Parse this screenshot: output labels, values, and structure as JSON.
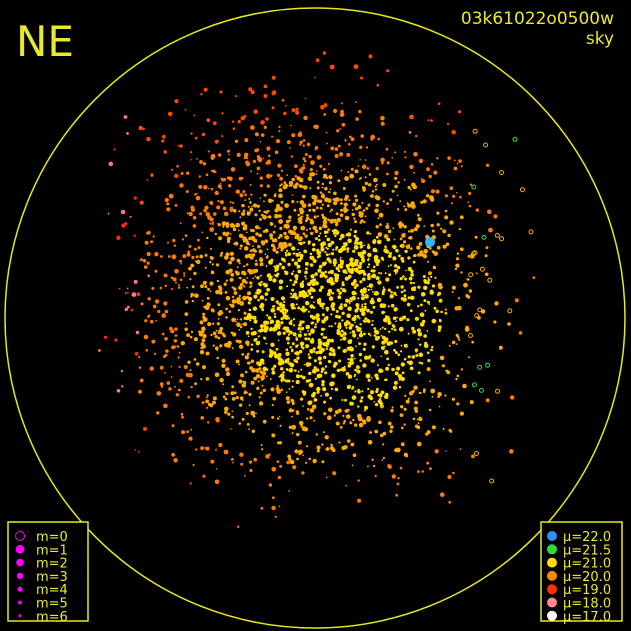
{
  "header": {
    "label": "NE",
    "id": "03k61022o0500w",
    "mode": "sky"
  },
  "magnitude_legend": {
    "color": "#ff00ff",
    "items": [
      "m=0",
      "m=1",
      "m=2",
      "m=3",
      "m=4",
      "m=5",
      "m=6"
    ]
  },
  "brightness_legend": {
    "items": [
      {
        "label": "μ=22.0",
        "color": "#2f8fff"
      },
      {
        "label": "μ=21.5",
        "color": "#33dd33"
      },
      {
        "label": "μ=21.0",
        "color": "#ffdd00"
      },
      {
        "label": "μ=20.0",
        "color": "#ff8800"
      },
      {
        "label": "μ=19.0",
        "color": "#ff3300"
      },
      {
        "label": "μ=18.0",
        "color": "#ff8899"
      },
      {
        "label": "μ=17.0",
        "color": "#ffffff"
      }
    ]
  }
}
